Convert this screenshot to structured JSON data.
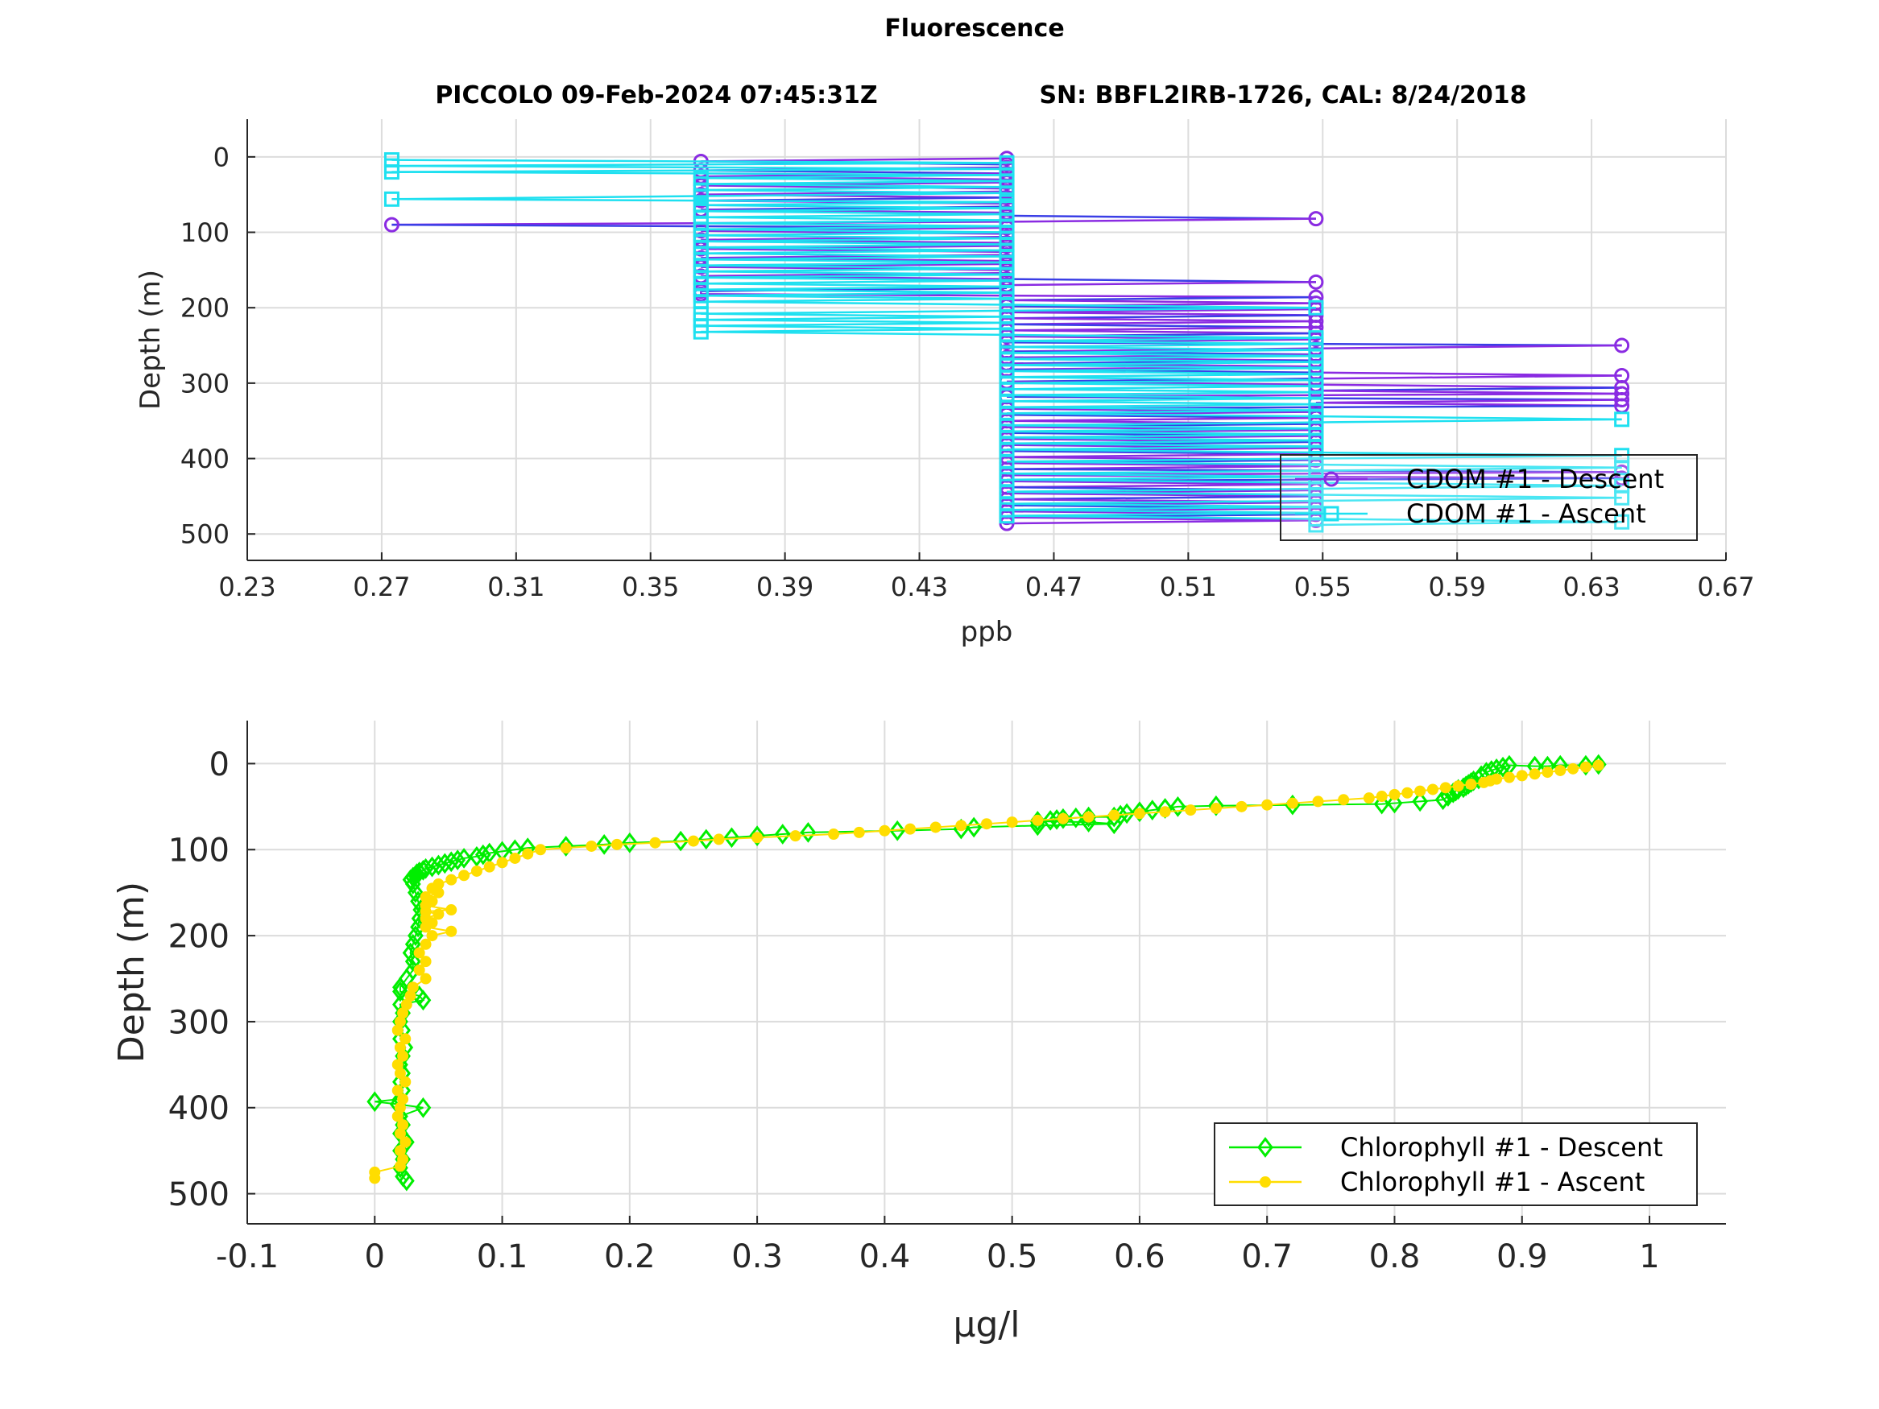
{
  "figure": {
    "title": "Fluorescence",
    "subtitle_left": "PICCOLO 09-Feb-2024 07:45:31Z",
    "subtitle_right": "SN: BBFL2IRB-1726, CAL: 8/24/2018"
  },
  "colors": {
    "cdom_descent": "#8a2be2",
    "cdom_descent_mid": "#3a3ee6",
    "cdom_ascent": "#1ee0f0",
    "chl_descent": "#00ee00",
    "chl_ascent": "#ffdd00",
    "grid": "#dcdcdc",
    "axis": "#262626"
  },
  "chart_data": [
    {
      "type": "line",
      "xlabel": "ppb",
      "ylabel": "Depth (m)",
      "xlim": [
        0.23,
        0.67
      ],
      "ylim": [
        535,
        -50
      ],
      "y_reversed": true,
      "grid": true,
      "legend_position": "bottom-right",
      "xticks": [
        0.23,
        0.27,
        0.31,
        0.35,
        0.39,
        0.43,
        0.47,
        0.51,
        0.55,
        0.59,
        0.63,
        0.67
      ],
      "yticks": [
        0,
        100,
        200,
        300,
        400,
        500
      ],
      "series": [
        {
          "name": "CDOM #1 - Descent",
          "marker": "circle",
          "depth": [
            2,
            6,
            10,
            14,
            18,
            22,
            26,
            30,
            34,
            38,
            42,
            46,
            50,
            54,
            58,
            62,
            66,
            70,
            74,
            78,
            82,
            86,
            90,
            94,
            98,
            102,
            106,
            110,
            114,
            118,
            122,
            126,
            130,
            134,
            138,
            142,
            146,
            150,
            154,
            158,
            162,
            166,
            170,
            174,
            178,
            182,
            186,
            190,
            194,
            198,
            202,
            206,
            210,
            214,
            218,
            222,
            226,
            230,
            234,
            238,
            242,
            246,
            250,
            254,
            258,
            262,
            266,
            270,
            274,
            278,
            282,
            286,
            290,
            294,
            298,
            302,
            306,
            310,
            314,
            318,
            322,
            326,
            330,
            334,
            338,
            342,
            346,
            350,
            354,
            358,
            362,
            366,
            370,
            374,
            378,
            382,
            386,
            390,
            394,
            398,
            402,
            406,
            410,
            414,
            418,
            422,
            426,
            430,
            434,
            438,
            442,
            446,
            450,
            454,
            458,
            462,
            466,
            470,
            474,
            478,
            482,
            486
          ],
          "value": [
            0.456,
            0.365,
            0.456,
            0.456,
            0.365,
            0.456,
            0.365,
            0.456,
            0.456,
            0.365,
            0.456,
            0.456,
            0.365,
            0.456,
            0.365,
            0.456,
            0.456,
            0.365,
            0.456,
            0.456,
            0.548,
            0.456,
            0.273,
            0.456,
            0.365,
            0.456,
            0.456,
            0.365,
            0.456,
            0.456,
            0.365,
            0.456,
            0.456,
            0.365,
            0.456,
            0.456,
            0.365,
            0.456,
            0.456,
            0.365,
            0.456,
            0.548,
            0.456,
            0.456,
            0.365,
            0.365,
            0.548,
            0.456,
            0.548,
            0.456,
            0.548,
            0.456,
            0.548,
            0.456,
            0.548,
            0.456,
            0.548,
            0.456,
            0.548,
            0.456,
            0.548,
            0.456,
            0.639,
            0.548,
            0.456,
            0.548,
            0.456,
            0.548,
            0.456,
            0.548,
            0.456,
            0.548,
            0.639,
            0.548,
            0.456,
            0.548,
            0.639,
            0.548,
            0.639,
            0.456,
            0.639,
            0.548,
            0.639,
            0.456,
            0.548,
            0.456,
            0.548,
            0.456,
            0.548,
            0.456,
            0.548,
            0.456,
            0.548,
            0.456,
            0.548,
            0.456,
            0.548,
            0.456,
            0.548,
            0.456,
            0.548,
            0.456,
            0.548,
            0.456,
            0.639,
            0.456,
            0.639,
            0.456,
            0.548,
            0.456,
            0.548,
            0.456,
            0.548,
            0.456,
            0.548,
            0.456,
            0.548,
            0.456,
            0.548,
            0.456,
            0.548,
            0.456
          ]
        },
        {
          "name": "CDOM #1 - Ascent",
          "marker": "square",
          "depth": [
            488,
            484,
            480,
            476,
            472,
            468,
            464,
            460,
            456,
            452,
            448,
            444,
            440,
            436,
            432,
            428,
            424,
            420,
            416,
            412,
            408,
            404,
            400,
            396,
            392,
            388,
            384,
            380,
            376,
            372,
            368,
            364,
            360,
            356,
            352,
            348,
            344,
            340,
            336,
            332,
            328,
            324,
            320,
            316,
            312,
            308,
            304,
            300,
            296,
            292,
            288,
            284,
            280,
            276,
            272,
            268,
            264,
            260,
            256,
            252,
            248,
            244,
            240,
            236,
            232,
            228,
            224,
            220,
            216,
            212,
            208,
            204,
            200,
            196,
            192,
            188,
            184,
            180,
            176,
            172,
            168,
            164,
            160,
            156,
            152,
            148,
            144,
            140,
            136,
            132,
            128,
            124,
            120,
            116,
            112,
            108,
            104,
            100,
            96,
            92,
            88,
            84,
            80,
            76,
            72,
            68,
            64,
            60,
            56,
            52,
            48,
            44,
            40,
            36,
            32,
            28,
            24,
            20,
            16,
            12,
            8,
            4
          ],
          "value": [
            0.548,
            0.639,
            0.548,
            0.456,
            0.548,
            0.456,
            0.548,
            0.456,
            0.548,
            0.639,
            0.548,
            0.456,
            0.548,
            0.639,
            0.548,
            0.456,
            0.548,
            0.456,
            0.548,
            0.639,
            0.548,
            0.456,
            0.548,
            0.639,
            0.548,
            0.456,
            0.548,
            0.456,
            0.548,
            0.456,
            0.548,
            0.456,
            0.548,
            0.456,
            0.548,
            0.639,
            0.548,
            0.456,
            0.548,
            0.456,
            0.548,
            0.456,
            0.548,
            0.456,
            0.548,
            0.456,
            0.548,
            0.456,
            0.548,
            0.456,
            0.548,
            0.456,
            0.548,
            0.456,
            0.548,
            0.456,
            0.548,
            0.456,
            0.548,
            0.456,
            0.548,
            0.456,
            0.548,
            0.456,
            0.365,
            0.456,
            0.365,
            0.456,
            0.365,
            0.456,
            0.365,
            0.456,
            0.548,
            0.456,
            0.365,
            0.456,
            0.365,
            0.456,
            0.365,
            0.456,
            0.365,
            0.456,
            0.365,
            0.456,
            0.365,
            0.456,
            0.365,
            0.456,
            0.365,
            0.456,
            0.365,
            0.456,
            0.365,
            0.456,
            0.365,
            0.456,
            0.365,
            0.456,
            0.365,
            0.456,
            0.365,
            0.456,
            0.365,
            0.456,
            0.365,
            0.456,
            0.365,
            0.456,
            0.273,
            0.365,
            0.456,
            0.365,
            0.456,
            0.365,
            0.456,
            0.365,
            0.456,
            0.273,
            0.456,
            0.273,
            0.456,
            0.273
          ]
        }
      ]
    },
    {
      "type": "line",
      "xlabel": "μg/l",
      "ylabel": "Depth (m)",
      "xlim": [
        -0.1,
        1.06
      ],
      "ylim": [
        535,
        -50
      ],
      "y_reversed": true,
      "grid": true,
      "legend_position": "bottom-right",
      "xticks": [
        -0.1,
        0,
        0.1,
        0.2,
        0.3,
        0.4,
        0.5,
        0.6,
        0.7,
        0.8,
        0.9,
        1
      ],
      "yticks": [
        0,
        100,
        200,
        300,
        400,
        500
      ],
      "series": [
        {
          "name": "Chlorophyll #1 - Descent",
          "marker": "diamond",
          "depth": [
            1,
            2,
            2,
            3,
            3,
            2,
            4,
            6,
            8,
            10,
            14,
            18,
            20,
            22,
            24,
            26,
            28,
            30,
            32,
            34,
            38,
            42,
            44,
            46,
            47,
            48,
            49,
            50,
            52,
            54,
            56,
            58,
            60,
            62,
            62,
            63,
            64,
            65,
            66,
            67,
            68,
            70,
            72,
            74,
            76,
            78,
            80,
            82,
            84,
            86,
            88,
            90,
            92,
            94,
            96,
            98,
            100,
            102,
            104,
            106,
            108,
            110,
            112,
            114,
            116,
            118,
            120,
            122,
            124,
            126,
            128,
            130,
            132,
            135,
            140,
            150,
            160,
            170,
            180,
            190,
            200,
            210,
            220,
            230,
            240,
            250,
            260,
            265,
            270,
            275,
            280,
            290,
            300,
            310,
            320,
            330,
            340,
            350,
            360,
            370,
            380,
            390,
            393,
            396,
            400,
            410,
            420,
            430,
            440,
            450,
            460,
            470,
            480,
            485
          ],
          "value": [
            0.96,
            0.95,
            0.93,
            0.92,
            0.91,
            0.89,
            0.885,
            0.88,
            0.876,
            0.872,
            0.868,
            0.866,
            0.862,
            0.86,
            0.858,
            0.856,
            0.854,
            0.85,
            0.848,
            0.846,
            0.842,
            0.838,
            0.82,
            0.8,
            0.79,
            0.72,
            0.66,
            0.63,
            0.62,
            0.61,
            0.6,
            0.59,
            0.585,
            0.58,
            0.56,
            0.55,
            0.54,
            0.535,
            0.53,
            0.52,
            0.56,
            0.58,
            0.52,
            0.47,
            0.46,
            0.41,
            0.34,
            0.32,
            0.3,
            0.28,
            0.26,
            0.24,
            0.2,
            0.18,
            0.15,
            0.12,
            0.11,
            0.1,
            0.09,
            0.085,
            0.08,
            0.07,
            0.065,
            0.06,
            0.055,
            0.05,
            0.045,
            0.04,
            0.038,
            0.035,
            0.033,
            0.032,
            0.03,
            0.028,
            0.03,
            0.032,
            0.034,
            0.036,
            0.035,
            0.034,
            0.032,
            0.03,
            0.028,
            0.03,
            0.03,
            0.025,
            0.02,
            0.02,
            0.035,
            0.038,
            0.02,
            0.022,
            0.02,
            0.022,
            0.02,
            0.024,
            0.022,
            0.02,
            0.022,
            0.02,
            0.022,
            0.02,
            0.0,
            0.018,
            0.038,
            0.02,
            0.022,
            0.02,
            0.025,
            0.02,
            0.022,
            0.02,
            0.022,
            0.025
          ]
        },
        {
          "name": "Chlorophyll #1 - Ascent",
          "marker": "asterisk",
          "depth": [
            482,
            475,
            468,
            460,
            450,
            440,
            430,
            420,
            410,
            400,
            390,
            380,
            370,
            360,
            350,
            340,
            330,
            320,
            310,
            300,
            290,
            280,
            270,
            260,
            250,
            240,
            230,
            220,
            210,
            200,
            195,
            190,
            185,
            180,
            175,
            172,
            170,
            165,
            160,
            155,
            150,
            145,
            140,
            135,
            130,
            125,
            120,
            115,
            110,
            105,
            100,
            98,
            96,
            94,
            92,
            90,
            88,
            86,
            84,
            82,
            80,
            78,
            76,
            74,
            72,
            70,
            68,
            66,
            64,
            62,
            60,
            58,
            56,
            54,
            52,
            50,
            48,
            46,
            44,
            42,
            40,
            38,
            36,
            34,
            32,
            30,
            28,
            26,
            24,
            22,
            20,
            18,
            16,
            14,
            12,
            10,
            8,
            6,
            4,
            2
          ],
          "value": [
            0.0,
            0.0,
            0.02,
            0.022,
            0.02,
            0.024,
            0.02,
            0.022,
            0.018,
            0.02,
            0.022,
            0.018,
            0.024,
            0.02,
            0.018,
            0.022,
            0.02,
            0.024,
            0.018,
            0.02,
            0.022,
            0.025,
            0.028,
            0.03,
            0.04,
            0.035,
            0.04,
            0.035,
            0.04,
            0.045,
            0.06,
            0.04,
            0.045,
            0.04,
            0.05,
            0.04,
            0.06,
            0.04,
            0.045,
            0.04,
            0.05,
            0.045,
            0.05,
            0.06,
            0.07,
            0.08,
            0.09,
            0.1,
            0.11,
            0.12,
            0.13,
            0.15,
            0.17,
            0.19,
            0.22,
            0.25,
            0.27,
            0.3,
            0.33,
            0.36,
            0.38,
            0.4,
            0.42,
            0.44,
            0.46,
            0.48,
            0.5,
            0.52,
            0.54,
            0.56,
            0.58,
            0.6,
            0.62,
            0.64,
            0.66,
            0.68,
            0.7,
            0.72,
            0.74,
            0.76,
            0.78,
            0.79,
            0.8,
            0.81,
            0.82,
            0.83,
            0.84,
            0.85,
            0.86,
            0.87,
            0.875,
            0.88,
            0.89,
            0.9,
            0.91,
            0.92,
            0.93,
            0.94,
            0.95,
            0.96
          ]
        }
      ]
    }
  ]
}
